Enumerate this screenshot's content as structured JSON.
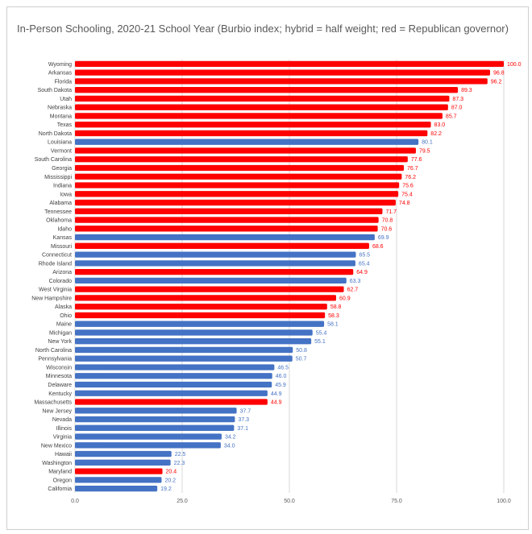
{
  "chart_data": {
    "type": "bar",
    "orientation": "horizontal",
    "title": "In-Person Schooling, 2020-21 School Year (Burbio index; hybrid = half weight; red = Republican governor)",
    "xlabel": "",
    "ylabel": "",
    "xlim": [
      0,
      100
    ],
    "xticks": [
      "0.0",
      "25.0",
      "50.0",
      "75.0",
      "100.0"
    ],
    "grid": true,
    "colors": {
      "Republican": "#ff0000",
      "Democrat": "#4472c4"
    },
    "categories": [
      "Wyoming",
      "Arkansas",
      "Florida",
      "South Dakota",
      "Utah",
      "Nebraska",
      "Montana",
      "Texas",
      "North Dakota",
      "Louisiana",
      "Vermont",
      "South Carolina",
      "Georgia",
      "Mississippi",
      "Indiana",
      "Iowa",
      "Alabama",
      "Tennessee",
      "Oklahoma",
      "Idaho",
      "Kansas",
      "Missouri",
      "Connecticut",
      "Rhode Island",
      "Arizona",
      "Colorado",
      "West Virginia",
      "New Hampshire",
      "Alaska",
      "Ohio",
      "Maine",
      "Michigan",
      "New York",
      "North Carolina",
      "Pennsylvania",
      "Wisconsin",
      "Minnesota",
      "Delaware",
      "Kentucky",
      "Massachusetts",
      "New Jersey",
      "Nevada",
      "Illinois",
      "Virginia",
      "New Mexico",
      "Hawaii",
      "Washington",
      "Maryland",
      "Oregon",
      "California"
    ],
    "values": [
      100.0,
      96.8,
      96.2,
      89.3,
      87.3,
      87.0,
      85.7,
      83.0,
      82.2,
      80.1,
      79.5,
      77.6,
      76.7,
      76.2,
      75.6,
      75.4,
      74.8,
      71.7,
      70.8,
      70.6,
      69.9,
      68.6,
      65.5,
      65.4,
      64.9,
      63.3,
      62.7,
      60.9,
      58.8,
      58.3,
      58.1,
      55.4,
      55.1,
      50.8,
      50.7,
      46.5,
      46.0,
      45.9,
      44.9,
      44.9,
      37.7,
      37.3,
      37.1,
      34.2,
      34.0,
      22.5,
      22.3,
      20.4,
      20.2,
      19.2
    ],
    "labels": [
      "100.0",
      "96.8",
      "96.2",
      "89.3",
      "87.3",
      "87.0",
      "85.7",
      "83.0",
      "82.2",
      "80.1",
      "79.5",
      "77.6",
      "76.7",
      "76.2",
      "75.6",
      "75.4",
      "74.8",
      "71.7",
      "70.8",
      "70.6",
      "69.9",
      "68.6",
      "65.5",
      "65.4",
      "64.9",
      "63.3",
      "62.7",
      "60.9",
      "58.8",
      "58.3",
      "58.1",
      "55.4",
      "55.1",
      "50.8",
      "50.7",
      "46.5",
      "46.0",
      "45.9",
      "44.9",
      "44.9",
      "37.7",
      "37.3",
      "37.1",
      "34.2",
      "34.0",
      "22.5",
      "22.3",
      "20.4",
      "20.2",
      "19.2"
    ],
    "party": [
      "R",
      "R",
      "R",
      "R",
      "R",
      "R",
      "R",
      "R",
      "R",
      "D",
      "R",
      "R",
      "R",
      "R",
      "R",
      "R",
      "R",
      "R",
      "R",
      "R",
      "D",
      "R",
      "D",
      "D",
      "R",
      "D",
      "R",
      "R",
      "R",
      "R",
      "D",
      "D",
      "D",
      "D",
      "D",
      "D",
      "D",
      "D",
      "D",
      "R",
      "D",
      "D",
      "D",
      "D",
      "D",
      "D",
      "D",
      "R",
      "D",
      "D"
    ]
  }
}
